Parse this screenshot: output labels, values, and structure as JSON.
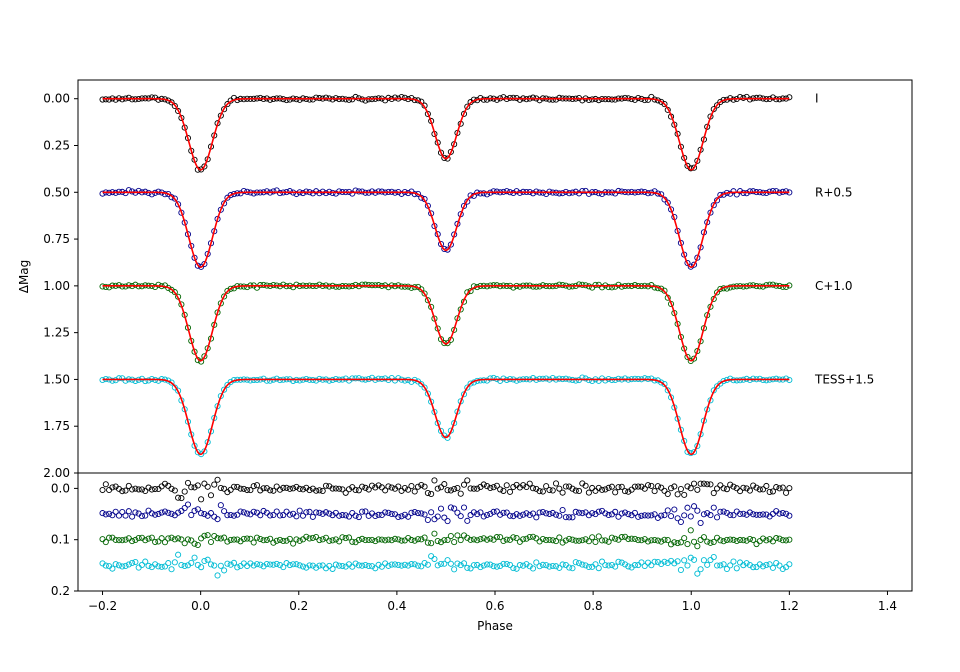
{
  "chart_data": {
    "type": "scatter",
    "title": "",
    "xlabel": "Phase",
    "ylabel": "ΔMag",
    "x_ticks": [
      "−0.2",
      "0.0",
      "0.2",
      "0.4",
      "0.6",
      "0.8",
      "1.0",
      "1.2",
      "1.4"
    ],
    "x_tick_values": [
      -0.2,
      0.0,
      0.2,
      0.4,
      0.6,
      0.8,
      1.0,
      1.2,
      1.4
    ],
    "xlim": [
      -0.25,
      1.45
    ],
    "grid": false,
    "legend": "none",
    "model_color": "#ff0000",
    "lightcurve_panel": {
      "ylim": [
        2.0,
        -0.1
      ],
      "inverted_y": true,
      "y_ticks": [
        "0.00",
        "0.25",
        "0.50",
        "0.75",
        "1.00",
        "1.25",
        "1.50",
        "1.75",
        "2.00"
      ],
      "y_tick_values": [
        0.0,
        0.25,
        0.5,
        0.75,
        1.0,
        1.25,
        1.5,
        1.75,
        2.0
      ],
      "phase_range": [
        -0.2,
        1.2
      ],
      "series": [
        {
          "label": "I",
          "offset": 0.0,
          "primary_depth": 0.38,
          "secondary_depth": 0.32,
          "primary_width": 0.034,
          "secondary_width": 0.031,
          "color": "#000000"
        },
        {
          "label": "R+0.5",
          "offset": 0.5,
          "primary_depth": 0.4,
          "secondary_depth": 0.31,
          "primary_width": 0.034,
          "secondary_width": 0.031,
          "color": "#00008b"
        },
        {
          "label": "C+1.0",
          "offset": 1.0,
          "primary_depth": 0.4,
          "secondary_depth": 0.31,
          "primary_width": 0.034,
          "secondary_width": 0.031,
          "color": "#006400"
        },
        {
          "label": "TESS+1.5",
          "offset": 1.5,
          "primary_depth": 0.4,
          "secondary_depth": 0.31,
          "primary_width": 0.034,
          "secondary_width": 0.031,
          "color": "#00bcd4"
        }
      ]
    },
    "residual_panel": {
      "ylim": [
        0.2,
        -0.03
      ],
      "inverted_y": true,
      "y_ticks": [
        "0.0",
        "0.1",
        "0.2"
      ],
      "y_tick_values": [
        0.0,
        0.1,
        0.2
      ],
      "series": [
        {
          "offset": 0.0,
          "scatter": 0.008,
          "color": "#000000"
        },
        {
          "offset": 0.05,
          "scatter": 0.008,
          "color": "#00008b"
        },
        {
          "offset": 0.1,
          "scatter": 0.006,
          "color": "#006400"
        },
        {
          "offset": 0.15,
          "scatter": 0.007,
          "color": "#00bcd4"
        }
      ]
    }
  }
}
